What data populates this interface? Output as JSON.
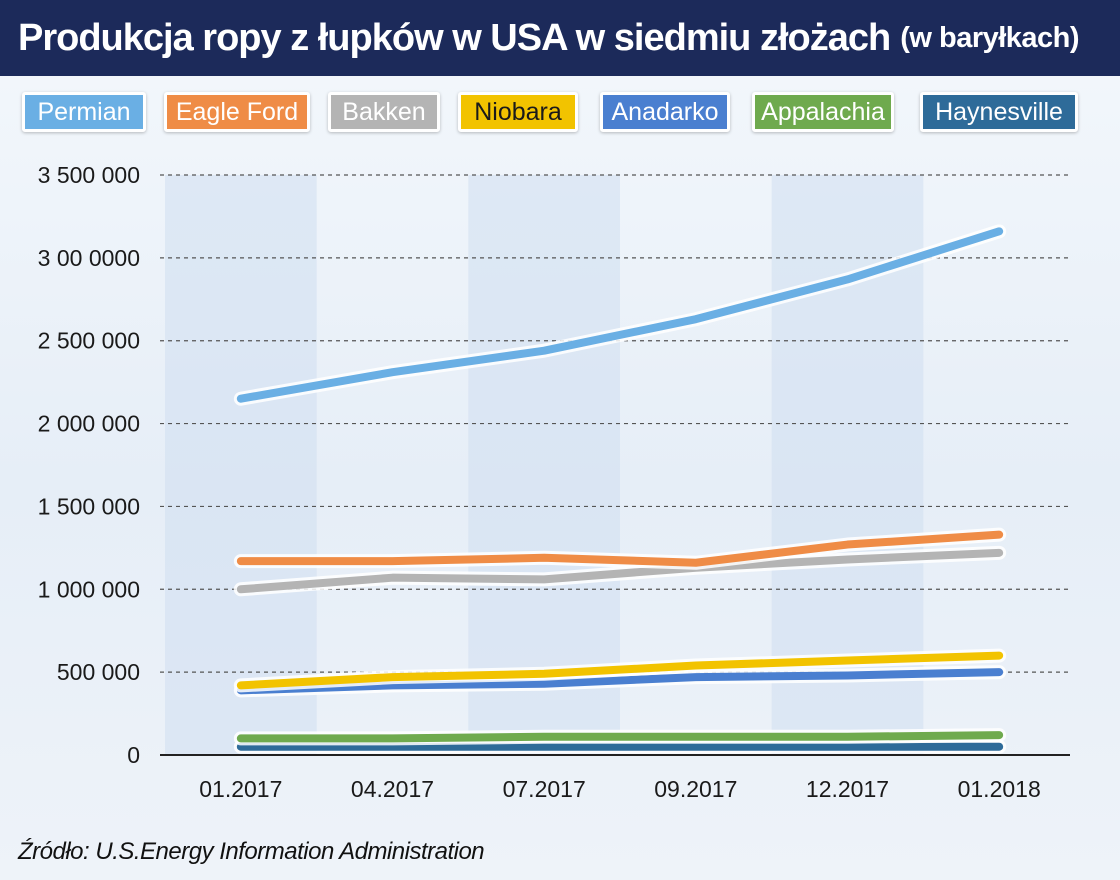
{
  "header": {
    "title": "Produkcja ropy z łupków w USA w siedmiu złożach",
    "subtitle": "(w baryłkach)"
  },
  "source": "Źródło: U.S.Energy Information Administration",
  "chart_data": {
    "type": "line",
    "title": "Produkcja ropy z łupków w USA w siedmiu złożach",
    "subtitle": "(w baryłkach)",
    "categories": [
      "01.2017",
      "04.2017",
      "07.2017",
      "09.2017",
      "12.2017",
      "01.2018"
    ],
    "ylim": [
      0,
      3500000
    ],
    "yticks": [
      0,
      500000,
      1000000,
      1500000,
      2000000,
      2500000,
      3000000,
      3500000
    ],
    "ytick_labels": [
      "0",
      "500 000",
      "1 000 000",
      "1 500 000",
      "2 000 000",
      "2 500 000",
      "3 00 0000",
      "3 500 000"
    ],
    "grid": "horizontal dashed",
    "legend_position": "top",
    "series": [
      {
        "name": "Permian",
        "color": "#6aafe4",
        "values": [
          2150000,
          2310000,
          2440000,
          2630000,
          2870000,
          3160000
        ]
      },
      {
        "name": "Eagle Ford",
        "color": "#ef8c46",
        "values": [
          1170000,
          1170000,
          1190000,
          1160000,
          1270000,
          1330000
        ]
      },
      {
        "name": "Bakken",
        "color": "#b4b4b4",
        "values": [
          1000000,
          1070000,
          1060000,
          1130000,
          1180000,
          1220000
        ]
      },
      {
        "name": "Niobara",
        "color": "#f2c300",
        "values": [
          420000,
          470000,
          490000,
          540000,
          570000,
          600000
        ]
      },
      {
        "name": "Anadarko",
        "color": "#4a7fd0",
        "values": [
          390000,
          420000,
          430000,
          470000,
          480000,
          500000
        ]
      },
      {
        "name": "Appalachia",
        "color": "#6faa4e",
        "values": [
          100000,
          100000,
          110000,
          110000,
          110000,
          120000
        ]
      },
      {
        "name": "Haynesville",
        "color": "#2e6b99",
        "values": [
          50000,
          50000,
          50000,
          50000,
          50000,
          50000
        ]
      }
    ]
  }
}
